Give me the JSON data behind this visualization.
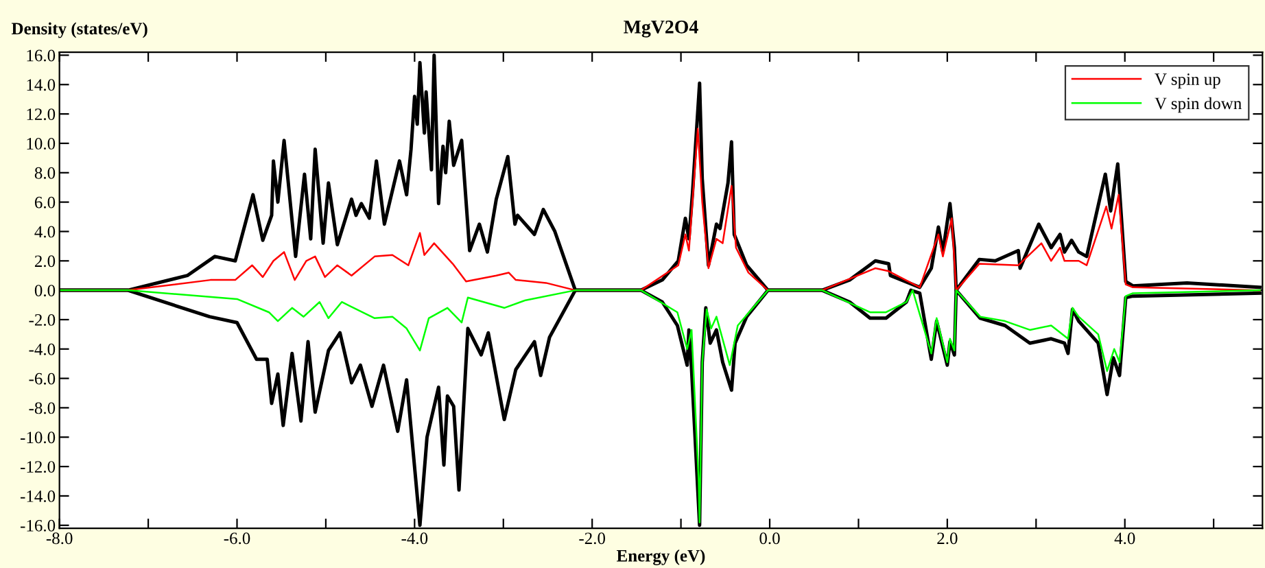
{
  "chart_data": {
    "type": "line",
    "title": "MgV2O4",
    "xlabel": "Energy (eV)",
    "ylabel": "Density (states/eV)",
    "xlim": [
      -8,
      5.55
    ],
    "ylim": [
      -16.2,
      16.2
    ],
    "xticks": [
      {
        "value": -8,
        "label": "-8.0"
      },
      {
        "value": -7,
        "label": null
      },
      {
        "value": -6,
        "label": "-6.0"
      },
      {
        "value": -5,
        "label": null
      },
      {
        "value": -4,
        "label": "-4.0"
      },
      {
        "value": -3,
        "label": null
      },
      {
        "value": -2,
        "label": "-2.0"
      },
      {
        "value": -1,
        "label": null
      },
      {
        "value": 0,
        "label": "0.0"
      },
      {
        "value": 1,
        "label": null
      },
      {
        "value": 2,
        "label": "2.0"
      },
      {
        "value": 3,
        "label": null
      },
      {
        "value": 4,
        "label": "4.0"
      },
      {
        "value": 5,
        "label": null
      }
    ],
    "yticks": [
      {
        "value": -16,
        "label": "-16.0"
      },
      {
        "value": -14,
        "label": "-14.0"
      },
      {
        "value": -12,
        "label": "-12.0"
      },
      {
        "value": -10,
        "label": "-10.0"
      },
      {
        "value": -8,
        "label": "-8.0"
      },
      {
        "value": -6,
        "label": "-6.0"
      },
      {
        "value": -4,
        "label": "-4.0"
      },
      {
        "value": -2,
        "label": "-2.0"
      },
      {
        "value": 0,
        "label": "0.0"
      },
      {
        "value": 2,
        "label": "2.0"
      },
      {
        "value": 4,
        "label": "4.0"
      },
      {
        "value": 6,
        "label": "6.0"
      },
      {
        "value": 8,
        "label": "8.0"
      },
      {
        "value": 10,
        "label": "10.0"
      },
      {
        "value": 12,
        "label": "12.0"
      },
      {
        "value": 14,
        "label": "14.0"
      },
      {
        "value": 16,
        "label": "16.0"
      }
    ],
    "grid": false,
    "legend": "top right",
    "marker": "none",
    "line_style": "solid",
    "series": [
      {
        "color": "#000000",
        "x": [
          -8,
          -7.23,
          -6.56,
          -6.25,
          -6.02,
          -5.82,
          -5.71,
          -5.61,
          -5.59,
          -5.54,
          -5.47,
          -5.34,
          -5.24,
          -5.17,
          -5.12,
          -5.03,
          -4.97,
          -4.87,
          -4.71,
          -4.66,
          -4.6,
          -4.51,
          -4.43,
          -4.34,
          -4.17,
          -4.09,
          -4.04,
          -4.0,
          -3.97,
          -3.94,
          -3.89,
          -3.87,
          -3.81,
          -3.78,
          -3.73,
          -3.68,
          -3.65,
          -3.61,
          -3.56,
          -3.47,
          -3.38,
          -3.27,
          -3.18,
          -3.08,
          -2.95,
          -2.87,
          -2.84,
          -2.65,
          -2.55,
          -2.42,
          -2.19,
          -1.45,
          -1.21,
          -1.03,
          -0.95,
          -0.91,
          -0.87,
          -0.79,
          -0.76,
          -0.69,
          -0.6,
          -0.56,
          -0.47,
          -0.43,
          -0.4,
          -0.26,
          -0.02,
          0.59,
          0.9,
          1.19,
          1.34,
          1.36,
          1.69,
          1.82,
          1.9,
          1.95,
          2.03,
          2.08,
          2.1,
          2.36,
          2.54,
          2.8,
          2.82,
          3.03,
          3.17,
          3.27,
          3.32,
          3.4,
          3.48,
          3.57,
          3.78,
          3.84,
          3.92,
          4.01,
          4.09,
          4.7,
          5.52
        ],
        "values": [
          0,
          0,
          1.0,
          2.3,
          2.0,
          6.5,
          3.4,
          5.1,
          8.8,
          6.0,
          10.2,
          2.3,
          7.9,
          3.5,
          9.6,
          3.2,
          7.3,
          3.1,
          6.2,
          5.1,
          5.9,
          4.9,
          8.8,
          4.5,
          8.8,
          6.5,
          9.6,
          13.2,
          11.3,
          15.5,
          10.7,
          13.5,
          8.2,
          16.0,
          5.9,
          9.8,
          8.0,
          11.5,
          8.5,
          10.2,
          2.7,
          4.5,
          2.6,
          6.2,
          9.1,
          4.5,
          5.1,
          3.8,
          5.5,
          4.0,
          0,
          0,
          0.7,
          2.0,
          4.9,
          3.5,
          6.6,
          14.1,
          7.6,
          1.7,
          4.5,
          4.2,
          7.3,
          10.1,
          3.8,
          1.7,
          0,
          0,
          0.7,
          2.0,
          1.8,
          1.0,
          0.2,
          1.5,
          4.3,
          2.6,
          5.9,
          2.9,
          0,
          2.1,
          2.0,
          2.7,
          1.5,
          4.5,
          2.9,
          3.8,
          2.6,
          3.4,
          2.6,
          2.3,
          7.9,
          5.4,
          8.6,
          0.6,
          0.3,
          0.5,
          0.2
        ]
      },
      {
        "color": "#000000",
        "x": [
          -8,
          -7.23,
          -6.31,
          -6.0,
          -5.78,
          -5.66,
          -5.61,
          -5.54,
          -5.48,
          -5.38,
          -5.28,
          -5.2,
          -5.12,
          -4.97,
          -4.84,
          -4.71,
          -4.61,
          -4.48,
          -4.35,
          -4.19,
          -4.09,
          -3.94,
          -3.86,
          -3.73,
          -3.67,
          -3.63,
          -3.56,
          -3.5,
          -3.4,
          -3.25,
          -3.17,
          -2.99,
          -2.86,
          -2.65,
          -2.58,
          -2.48,
          -2.19,
          -1.45,
          -1.21,
          -1.04,
          -0.93,
          -0.91,
          -0.88,
          -0.79,
          -0.76,
          -0.72,
          -0.67,
          -0.6,
          -0.53,
          -0.43,
          -0.39,
          -0.26,
          -0.02,
          0.59,
          0.9,
          1.13,
          1.31,
          1.54,
          1.59,
          1.69,
          1.82,
          1.88,
          2.0,
          2.03,
          2.08,
          2.1,
          2.37,
          2.65,
          2.93,
          3.17,
          3.32,
          3.36,
          3.41,
          3.48,
          3.7,
          3.8,
          3.87,
          3.94,
          4.01,
          4.09,
          5.52
        ],
        "values": [
          0,
          0,
          -1.8,
          -2.2,
          -4.7,
          -4.7,
          -7.7,
          -5.7,
          -9.2,
          -4.3,
          -8.9,
          -3.5,
          -8.3,
          -4.1,
          -2.9,
          -6.3,
          -5.1,
          -7.9,
          -5.1,
          -9.6,
          -6.1,
          -16.0,
          -10.0,
          -6.6,
          -11.9,
          -7.2,
          -7.9,
          -13.6,
          -2.6,
          -4.4,
          -2.9,
          -8.8,
          -5.4,
          -3.5,
          -5.8,
          -3.2,
          0,
          0,
          -0.8,
          -2.4,
          -5.1,
          -2.7,
          -5.4,
          -16.0,
          -4.9,
          -1.2,
          -3.6,
          -2.7,
          -4.9,
          -6.8,
          -3.6,
          -1.8,
          0,
          0,
          -0.8,
          -1.9,
          -1.9,
          -0.8,
          0,
          -0.2,
          -4.7,
          -2.1,
          -5.1,
          -3.5,
          -4.4,
          0,
          -1.9,
          -2.4,
          -3.6,
          -3.3,
          -3.6,
          -4.3,
          -1.3,
          -2.1,
          -3.6,
          -7.1,
          -4.6,
          -5.8,
          -0.5,
          -0.4,
          -0.2
        ]
      },
      {
        "name": "V spin up",
        "color": "#ff0000",
        "x": [
          -8,
          -7.23,
          -6.3,
          -6.02,
          -5.83,
          -5.71,
          -5.59,
          -5.47,
          -5.35,
          -5.22,
          -5.12,
          -5.01,
          -4.87,
          -4.71,
          -4.45,
          -4.25,
          -4.07,
          -3.94,
          -3.89,
          -3.78,
          -3.57,
          -3.42,
          -3.08,
          -2.94,
          -2.86,
          -2.52,
          -2.19,
          -1.45,
          -1.03,
          -0.95,
          -0.91,
          -0.81,
          -0.76,
          -0.69,
          -0.6,
          -0.53,
          -0.43,
          -0.38,
          -0.24,
          -0.02,
          0.59,
          1.19,
          1.34,
          1.69,
          1.9,
          1.95,
          2.05,
          2.1,
          2.36,
          2.8,
          3.06,
          3.17,
          3.27,
          3.32,
          3.48,
          3.57,
          3.79,
          3.85,
          3.93,
          4.01,
          4.09,
          5.52
        ],
        "values": [
          0,
          0,
          0.7,
          0.7,
          1.7,
          0.9,
          2.0,
          2.6,
          0.7,
          2.0,
          2.3,
          0.9,
          1.7,
          1.0,
          2.3,
          2.4,
          1.7,
          3.9,
          2.4,
          3.2,
          1.8,
          0.6,
          1.0,
          1.2,
          0.7,
          0.5,
          0,
          0,
          1.7,
          3.8,
          2.7,
          11.0,
          6.0,
          1.5,
          3.5,
          3.2,
          7.1,
          2.9,
          1.2,
          0,
          0,
          1.5,
          1.3,
          0.2,
          3.8,
          2.3,
          4.9,
          0,
          1.8,
          1.7,
          3.2,
          2.0,
          2.9,
          2.0,
          2.0,
          1.7,
          5.7,
          4.2,
          6.5,
          0.4,
          0.2,
          0.0
        ]
      },
      {
        "name": "V spin down",
        "color": "#00ff00",
        "x": [
          -8,
          -7.23,
          -6.0,
          -5.64,
          -5.54,
          -5.38,
          -5.25,
          -5.07,
          -4.97,
          -4.82,
          -4.45,
          -4.25,
          -4.09,
          -3.94,
          -3.84,
          -3.63,
          -3.47,
          -3.4,
          -2.99,
          -2.76,
          -2.19,
          -1.45,
          -1.04,
          -0.93,
          -0.88,
          -0.8,
          -0.79,
          -0.76,
          -0.71,
          -0.66,
          -0.6,
          -0.45,
          -0.36,
          -0.02,
          0.59,
          1.13,
          1.31,
          1.54,
          1.61,
          1.82,
          1.88,
          2.0,
          2.03,
          2.08,
          2.1,
          2.37,
          2.65,
          2.93,
          3.17,
          3.36,
          3.41,
          3.48,
          3.7,
          3.8,
          3.88,
          3.94,
          4.01,
          4.09,
          5.52
        ],
        "values": [
          0,
          0,
          -0.6,
          -1.5,
          -2.1,
          -1.2,
          -1.8,
          -0.8,
          -1.9,
          -0.8,
          -1.9,
          -1.8,
          -2.6,
          -4.1,
          -1.9,
          -1.2,
          -2.2,
          -0.5,
          -1.2,
          -0.7,
          0,
          0,
          -1.5,
          -4.0,
          -2.7,
          -13.0,
          -15.8,
          -4.9,
          -1.3,
          -2.6,
          -1.8,
          -5.1,
          -2.4,
          0,
          0,
          -1.5,
          -1.5,
          -0.8,
          0,
          -4.3,
          -1.9,
          -4.9,
          -3.3,
          -4.1,
          0,
          -1.8,
          -2.1,
          -2.7,
          -2.4,
          -3.3,
          -1.2,
          -1.8,
          -3.0,
          -5.5,
          -4.0,
          -4.9,
          -0.4,
          -0.2,
          0.0
        ]
      }
    ]
  }
}
